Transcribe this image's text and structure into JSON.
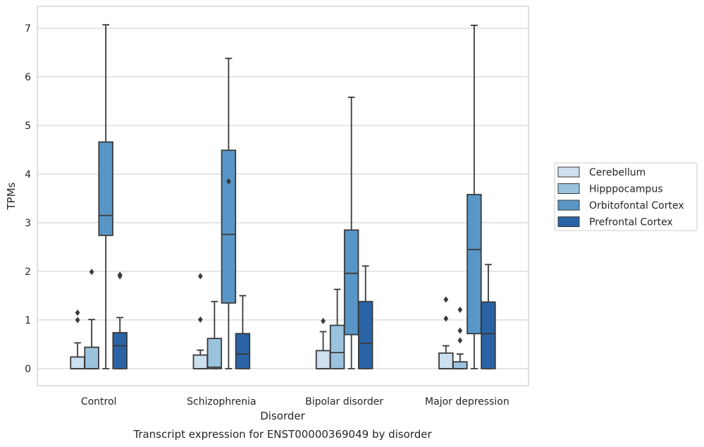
{
  "chart_data": {
    "type": "box",
    "title": "",
    "caption": "Transcript expression for ENST00000369049 by disorder",
    "xlabel": "Disorder",
    "ylabel": "TPMs",
    "categories": [
      "Control",
      "Schizophrenia",
      "Bipolar disorder",
      "Major depression"
    ],
    "ylim": [
      -0.35,
      7.45
    ],
    "yticks": [
      0,
      1,
      2,
      3,
      4,
      5,
      6,
      7
    ],
    "grid": true,
    "legend_position": "right",
    "series": [
      {
        "name": "Cerebellum",
        "color": "#cddff0",
        "boxes": [
          {
            "min": 0,
            "q1": 0,
            "median": 0,
            "q3": 0.24,
            "max": 0.53,
            "outliers": [
              1.0,
              1.15
            ]
          },
          {
            "min": 0,
            "q1": 0,
            "median": 0,
            "q3": 0.28,
            "max": 0.38,
            "outliers": [
              1.01,
              1.9
            ]
          },
          {
            "min": 0,
            "q1": 0,
            "median": 0,
            "q3": 0.37,
            "max": 0.76,
            "outliers": [
              0.98
            ]
          },
          {
            "min": 0,
            "q1": 0,
            "median": 0,
            "q3": 0.32,
            "max": 0.47,
            "outliers": [
              1.03,
              1.42
            ]
          }
        ]
      },
      {
        "name": "Hipppocampus",
        "color": "#9ac3de",
        "boxes": [
          {
            "min": 0,
            "q1": 0,
            "median": 0,
            "q3": 0.44,
            "max": 1.01,
            "outliers": [
              1.99
            ]
          },
          {
            "min": 0,
            "q1": 0,
            "median": 0.03,
            "q3": 0.62,
            "max": 1.38,
            "outliers": []
          },
          {
            "min": 0,
            "q1": 0,
            "median": 0.33,
            "q3": 0.89,
            "max": 1.63,
            "outliers": []
          },
          {
            "min": 0,
            "q1": 0,
            "median": 0,
            "q3": 0.14,
            "max": 0.3,
            "outliers": [
              0.58,
              0.78,
              1.21
            ]
          }
        ]
      },
      {
        "name": "Orbitofontal Cortex",
        "color": "#5896c8",
        "boxes": [
          {
            "min": 0,
            "q1": 2.74,
            "median": 3.15,
            "q3": 4.66,
            "max": 7.07,
            "outliers": []
          },
          {
            "min": 0,
            "q1": 1.35,
            "median": 2.76,
            "q3": 4.49,
            "max": 6.38,
            "outliers": [
              3.85
            ]
          },
          {
            "min": 0,
            "q1": 0.7,
            "median": 1.96,
            "q3": 2.85,
            "max": 5.58,
            "outliers": []
          },
          {
            "min": 0,
            "q1": 0.72,
            "median": 2.45,
            "q3": 3.58,
            "max": 7.06,
            "outliers": []
          }
        ]
      },
      {
        "name": "Prefrontal Cortex",
        "color": "#2a64a6",
        "boxes": [
          {
            "min": 0,
            "q1": 0,
            "median": 0.47,
            "q3": 0.74,
            "max": 1.05,
            "outliers": [
              1.9,
              1.93
            ]
          },
          {
            "min": 0,
            "q1": 0,
            "median": 0.3,
            "q3": 0.72,
            "max": 1.5,
            "outliers": []
          },
          {
            "min": 0,
            "q1": 0,
            "median": 0.52,
            "q3": 1.38,
            "max": 2.11,
            "outliers": []
          },
          {
            "min": 0,
            "q1": 0,
            "median": 0.72,
            "q3": 1.37,
            "max": 2.14,
            "outliers": []
          }
        ]
      }
    ]
  }
}
